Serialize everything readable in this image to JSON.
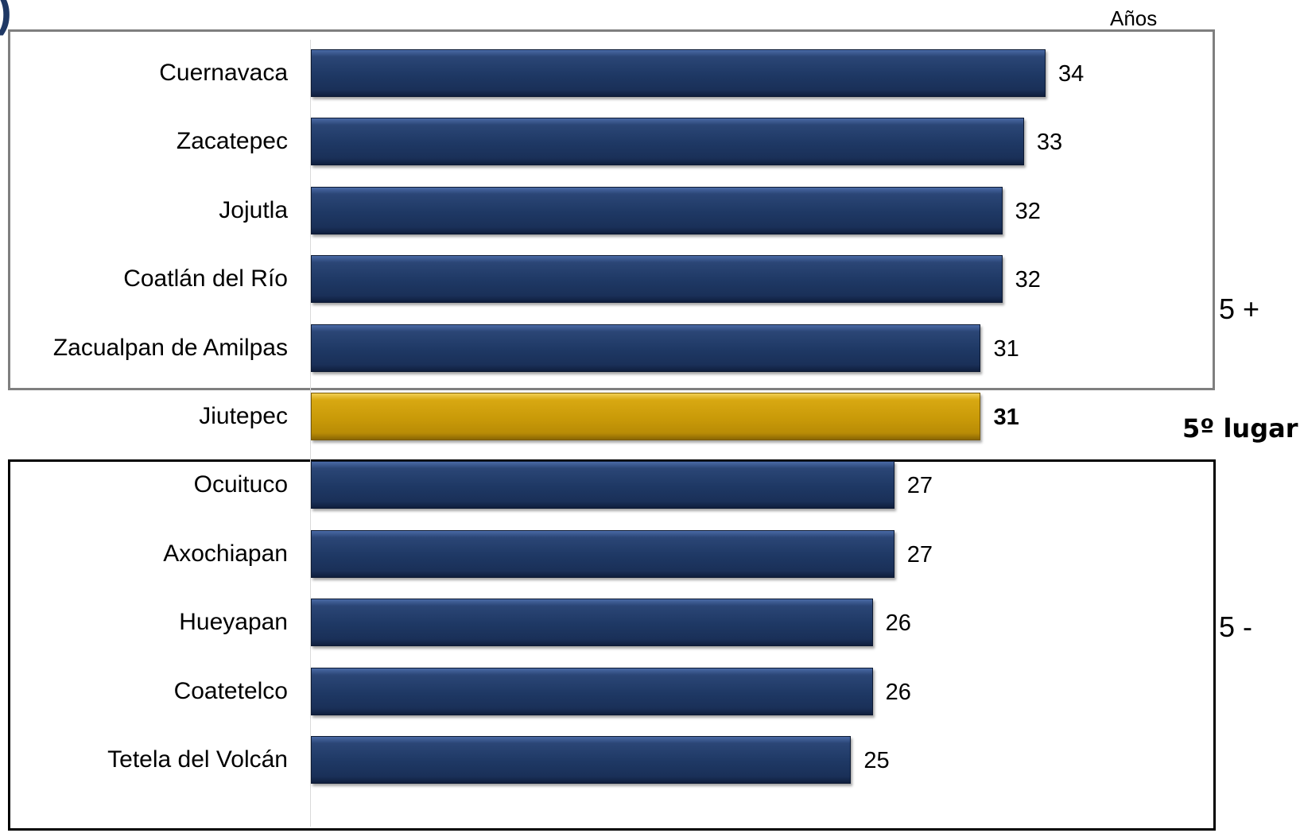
{
  "header": {
    "paren": ")"
  },
  "chart_data": {
    "type": "bar",
    "orientation": "horizontal",
    "unit_label": "Años",
    "categories": [
      "Cuernavaca",
      "Zacatepec",
      "Jojutla",
      "Coatlán del Río",
      "Zacualpan de Amilpas",
      "Jiutepec",
      "Ocuituco",
      "Axochiapan",
      "Hueyapan",
      "Coatetelco",
      "Tetela del Volcán"
    ],
    "values": [
      34,
      33,
      32,
      32,
      31,
      31,
      27,
      27,
      26,
      26,
      25
    ],
    "highlight_index": 5,
    "xlim": [
      0,
      34
    ],
    "grid": false,
    "colors": {
      "bar": "#1f3864",
      "highlight": "#c99a08"
    },
    "groups": [
      {
        "label": "5 +",
        "start": 0,
        "end": 4
      },
      {
        "label": "5 -",
        "start": 6,
        "end": 10
      }
    ],
    "highlight_label": "5º lugar"
  }
}
